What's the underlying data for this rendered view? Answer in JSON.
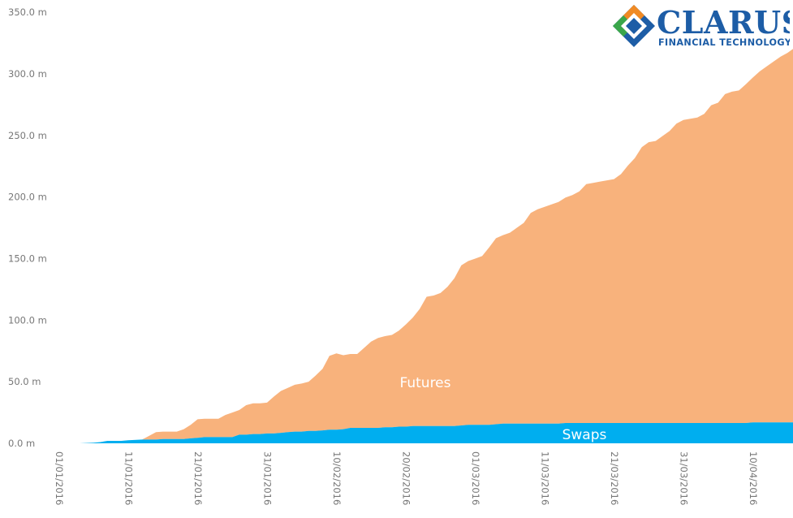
{
  "brand": {
    "name": "CLARUS",
    "tagline": "FINANCIAL TECHNOLOGY",
    "colors": {
      "blue": "#1d5da6",
      "orange": "#f08a24",
      "green": "#3aa64a"
    }
  },
  "chart_data": {
    "type": "area",
    "stacked": true,
    "title": "",
    "xlabel": "",
    "ylabel": "",
    "ylim": [
      0,
      350
    ],
    "y_ticks": [
      "0.0 m",
      "50.0 m",
      "100.0 m",
      "150.0 m",
      "200.0 m",
      "250.0 m",
      "300.0 m",
      "350.0 m"
    ],
    "x_ticks": [
      "01/01/2016",
      "11/01/2016",
      "21/01/2016",
      "31/01/2016",
      "10/02/2016",
      "20/02/2016",
      "01/03/2016",
      "11/03/2016",
      "21/03/2016",
      "31/03/2016",
      "10/04/2016"
    ],
    "x_range_days": [
      0,
      105
    ],
    "series": [
      {
        "name": "Swaps",
        "color": "#00aeef",
        "points": [
          [
            2,
            0
          ],
          [
            4,
            0.5
          ],
          [
            5,
            1
          ],
          [
            6,
            2
          ],
          [
            8,
            2
          ],
          [
            9,
            2.5
          ],
          [
            11,
            3
          ],
          [
            12,
            3
          ],
          [
            13,
            3
          ],
          [
            14,
            3.5
          ],
          [
            16,
            3.5
          ],
          [
            17,
            3.5
          ],
          [
            18,
            4
          ],
          [
            19,
            4.5
          ],
          [
            20,
            5
          ],
          [
            22,
            5
          ],
          [
            24,
            5
          ],
          [
            25,
            7
          ],
          [
            26,
            7
          ],
          [
            27,
            7.5
          ],
          [
            28,
            7.5
          ],
          [
            29,
            8
          ],
          [
            30,
            8
          ],
          [
            31,
            8.5
          ],
          [
            32,
            9
          ],
          [
            33,
            9.5
          ],
          [
            34,
            9.5
          ],
          [
            35,
            10
          ],
          [
            36,
            10
          ],
          [
            37,
            10.5
          ],
          [
            38,
            11
          ],
          [
            39,
            11
          ],
          [
            40,
            11.5
          ],
          [
            41,
            12.5
          ],
          [
            42,
            12.5
          ],
          [
            43,
            12.5
          ],
          [
            44,
            12.5
          ],
          [
            45,
            12.5
          ],
          [
            46,
            13
          ],
          [
            47,
            13
          ],
          [
            48,
            13.5
          ],
          [
            49,
            13.5
          ],
          [
            50,
            14
          ],
          [
            51,
            14
          ],
          [
            52,
            14
          ],
          [
            53,
            14
          ],
          [
            54,
            14
          ],
          [
            55,
            14
          ],
          [
            56,
            14
          ],
          [
            57,
            14.5
          ],
          [
            58,
            15
          ],
          [
            59,
            15
          ],
          [
            60,
            15
          ],
          [
            61,
            15
          ],
          [
            62,
            15.5
          ],
          [
            63,
            16
          ],
          [
            64,
            16
          ],
          [
            65,
            16
          ],
          [
            66,
            16
          ],
          [
            67,
            16
          ],
          [
            68,
            16
          ],
          [
            69,
            16
          ],
          [
            70,
            16
          ],
          [
            71,
            16
          ],
          [
            72,
            16.5
          ],
          [
            73,
            16.5
          ],
          [
            74,
            16.5
          ],
          [
            75,
            16.5
          ],
          [
            76,
            16.5
          ],
          [
            77,
            16.5
          ],
          [
            78,
            16.5
          ],
          [
            79,
            16.5
          ],
          [
            80,
            16.5
          ],
          [
            81,
            16.5
          ],
          [
            82,
            16.5
          ],
          [
            83,
            16.5
          ],
          [
            84,
            16.5
          ],
          [
            85,
            16.5
          ],
          [
            86,
            16.5
          ],
          [
            87,
            16.5
          ],
          [
            88,
            16.5
          ],
          [
            89,
            16.5
          ],
          [
            90,
            16.5
          ],
          [
            91,
            16.5
          ],
          [
            92,
            16.5
          ],
          [
            93,
            16.5
          ],
          [
            94,
            16.5
          ],
          [
            95,
            16.5
          ],
          [
            96,
            16.5
          ],
          [
            97,
            16.5
          ],
          [
            98,
            16.5
          ],
          [
            99,
            17
          ],
          [
            100,
            17
          ],
          [
            101,
            17
          ],
          [
            102,
            17
          ],
          [
            103,
            17
          ],
          [
            104,
            17
          ],
          [
            105,
            17
          ]
        ]
      },
      {
        "name": "Futures",
        "color": "#f8b27c",
        "points": [
          [
            2,
            0
          ],
          [
            4,
            0
          ],
          [
            6,
            0
          ],
          [
            8,
            0
          ],
          [
            10,
            0
          ],
          [
            11,
            0
          ],
          [
            12,
            3
          ],
          [
            13,
            6
          ],
          [
            14,
            6
          ],
          [
            15,
            6
          ],
          [
            16,
            6
          ],
          [
            17,
            8
          ],
          [
            18,
            11
          ],
          [
            19,
            15
          ],
          [
            20,
            15
          ],
          [
            21,
            15
          ],
          [
            22,
            15
          ],
          [
            23,
            18
          ],
          [
            24,
            20
          ],
          [
            25,
            20
          ],
          [
            26,
            24
          ],
          [
            27,
            25
          ],
          [
            28,
            25
          ],
          [
            29,
            25
          ],
          [
            30,
            30
          ],
          [
            31,
            34
          ],
          [
            32,
            36
          ],
          [
            33,
            38
          ],
          [
            34,
            39
          ],
          [
            35,
            40
          ],
          [
            36,
            45
          ],
          [
            37,
            50
          ],
          [
            38,
            60
          ],
          [
            39,
            62
          ],
          [
            40,
            60
          ],
          [
            41,
            60
          ],
          [
            42,
            60
          ],
          [
            43,
            65
          ],
          [
            44,
            70
          ],
          [
            45,
            73
          ],
          [
            46,
            74
          ],
          [
            47,
            75
          ],
          [
            48,
            78
          ],
          [
            49,
            83
          ],
          [
            50,
            88
          ],
          [
            51,
            95
          ],
          [
            52,
            105
          ],
          [
            53,
            106
          ],
          [
            54,
            108
          ],
          [
            55,
            113
          ],
          [
            56,
            120
          ],
          [
            57,
            130
          ],
          [
            58,
            133
          ],
          [
            59,
            135
          ],
          [
            60,
            137
          ],
          [
            61,
            144
          ],
          [
            62,
            151
          ],
          [
            63,
            153
          ],
          [
            64,
            155
          ],
          [
            65,
            159
          ],
          [
            66,
            163
          ],
          [
            67,
            171
          ],
          [
            68,
            174
          ],
          [
            69,
            176
          ],
          [
            70,
            178
          ],
          [
            71,
            180
          ],
          [
            72,
            183
          ],
          [
            73,
            185
          ],
          [
            74,
            188
          ],
          [
            75,
            194
          ],
          [
            76,
            195
          ],
          [
            77,
            196
          ],
          [
            78,
            197
          ],
          [
            79,
            198
          ],
          [
            80,
            202
          ],
          [
            81,
            209
          ],
          [
            82,
            215
          ],
          [
            83,
            224
          ],
          [
            84,
            228
          ],
          [
            85,
            229
          ],
          [
            86,
            233
          ],
          [
            87,
            237
          ],
          [
            88,
            243
          ],
          [
            89,
            246
          ],
          [
            90,
            247
          ],
          [
            91,
            248
          ],
          [
            92,
            251
          ],
          [
            93,
            258
          ],
          [
            94,
            260
          ],
          [
            95,
            267
          ],
          [
            96,
            269
          ],
          [
            97,
            270
          ],
          [
            98,
            275
          ],
          [
            99,
            280
          ],
          [
            100,
            285
          ],
          [
            101,
            289
          ],
          [
            102,
            293
          ],
          [
            103,
            297
          ],
          [
            104,
            300
          ],
          [
            105,
            304
          ]
        ]
      }
    ],
    "series_labels": {
      "futures": "Futures",
      "swaps": "Swaps"
    }
  }
}
